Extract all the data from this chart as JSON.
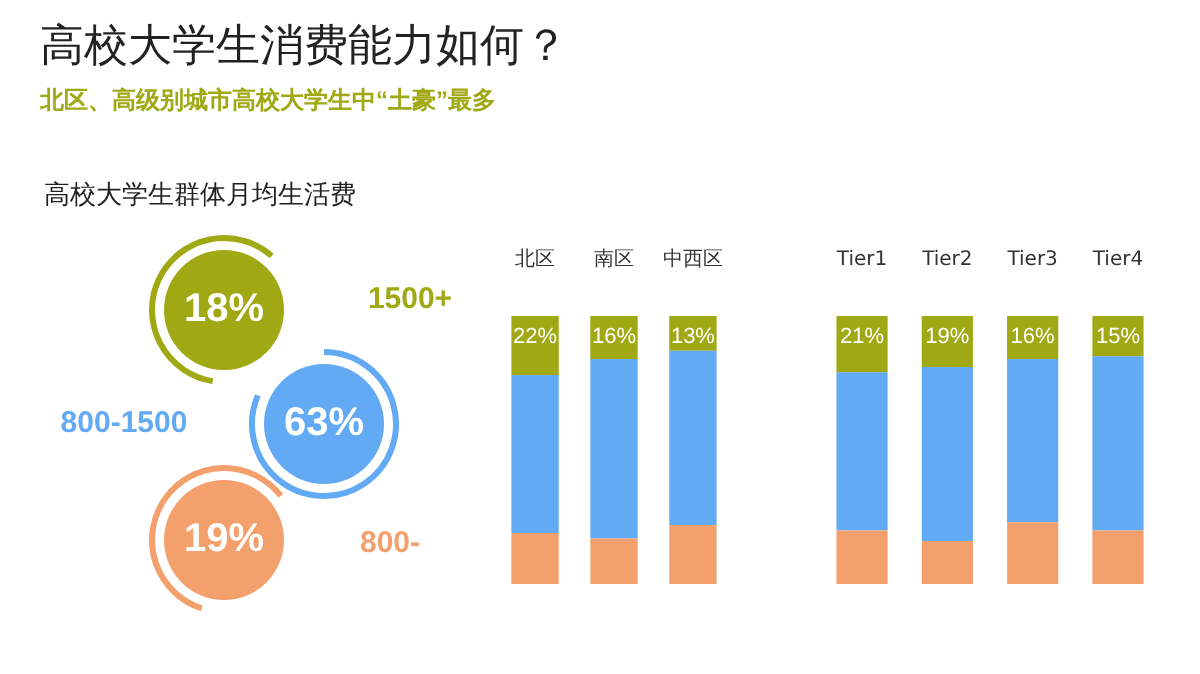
{
  "chart_data": [
    {
      "type": "other",
      "title": "高校大学生消费能力如何？",
      "subtitle": "北区、高级别城市高校大学生中“土豪”最多"
    },
    {
      "type": "other",
      "title": "高校大学生群体月均生活费",
      "categories": [
        "1500+",
        "800-1500",
        "800-"
      ],
      "values": [
        18,
        63,
        19
      ],
      "value_labels": [
        "18%",
        "63%",
        "19%"
      ],
      "colors": [
        "#a0a914",
        "#63aaf5",
        "#f4a06c"
      ]
    },
    {
      "type": "bar",
      "stacked": true,
      "ylim": [
        0,
        100
      ],
      "tick_labels": "x",
      "categories": [
        "北区",
        "南区",
        "中西区"
      ],
      "series": [
        {
          "color": "#f4a06c",
          "values": [
            19,
            17,
            22
          ]
        },
        {
          "color": "#63aaf5",
          "values": [
            59,
            67,
            65
          ]
        },
        {
          "color": "#a0a914",
          "values": [
            22,
            16,
            13
          ],
          "value_labels": [
            "22%",
            "16%",
            "13%"
          ]
        }
      ]
    },
    {
      "type": "bar",
      "stacked": true,
      "ylim": [
        0,
        100
      ],
      "tick_labels": "x",
      "categories": [
        "Tier1",
        "Tier2",
        "Tier3",
        "Tier4"
      ],
      "series": [
        {
          "color": "#f4a06c",
          "values": [
            20,
            16,
            23,
            20
          ]
        },
        {
          "color": "#63aaf5",
          "values": [
            59,
            65,
            61,
            65
          ]
        },
        {
          "color": "#a0a914",
          "values": [
            21,
            19,
            16,
            15
          ],
          "value_labels": [
            "21%",
            "19%",
            "16%",
            "15%"
          ]
        }
      ]
    }
  ]
}
